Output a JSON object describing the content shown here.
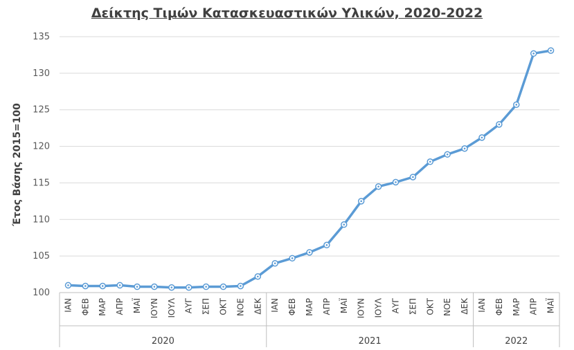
{
  "chart_data": {
    "type": "line",
    "title": "Δείκτης Τιμών Κατασκευαστικών Υλικών, 2020-2022",
    "xlabel": "",
    "ylabel": "Έτος Βάσης 2015=100",
    "ylim": [
      100,
      135
    ],
    "yticks": [
      100,
      105,
      110,
      115,
      120,
      125,
      130,
      135
    ],
    "grid": true,
    "legend": "none",
    "line_color": "#5B9BD5",
    "groups": [
      {
        "name": "2020",
        "months": [
          "ΙΑΝ",
          "ΦΕΒ",
          "ΜΑΡ",
          "ΑΠΡ",
          "ΜΑΪ",
          "ΙΟΥΝ",
          "ΙΟΥΛ",
          "ΑΥΓ",
          "ΣΕΠ",
          "ΟΚΤ",
          "ΝΟΕ",
          "ΔΕΚ"
        ]
      },
      {
        "name": "2021",
        "months": [
          "ΙΑΝ",
          "ΦΕΒ",
          "ΜΑΡ",
          "ΑΠΡ",
          "ΜΑΪ",
          "ΙΟΥΝ",
          "ΙΟΥΛ",
          "ΑΥΓ",
          "ΣΕΠ",
          "ΟΚΤ",
          "ΝΟΕ",
          "ΔΕΚ"
        ]
      },
      {
        "name": "2022",
        "months": [
          "ΙΑΝ",
          "ΦΕΒ",
          "ΜΑΡ",
          "ΑΠΡ",
          "ΜΑΪ"
        ]
      }
    ],
    "values": [
      101.0,
      100.9,
      100.9,
      101.0,
      100.8,
      100.8,
      100.7,
      100.7,
      100.8,
      100.8,
      100.9,
      102.2,
      104.0,
      104.7,
      105.5,
      106.5,
      109.3,
      112.5,
      114.5,
      115.1,
      115.8,
      117.9,
      118.9,
      119.7,
      121.2,
      123.0,
      125.7,
      132.7,
      133.1
    ]
  }
}
